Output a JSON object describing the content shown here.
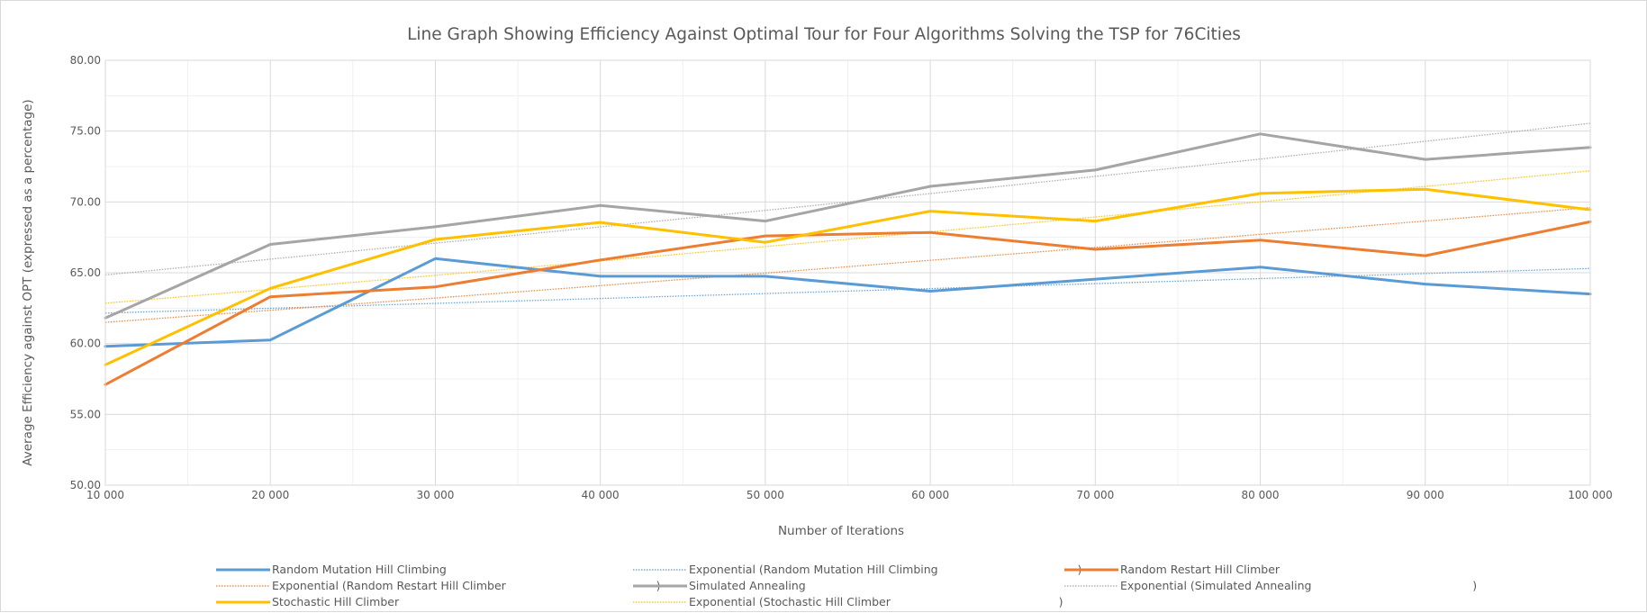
{
  "chart_data": {
    "type": "line",
    "title": "Line Graph Showing Efficiency Against Optimal Tour for Four Algorithms Solving the TSP for 76Cities",
    "xlabel": "Number of Iterations",
    "ylabel": "Average Efficiency against OPT (expressed as a percentage)",
    "x": [
      10000,
      20000,
      30000,
      40000,
      50000,
      60000,
      70000,
      80000,
      90000,
      100000
    ],
    "x_tick_labels": [
      "10 000",
      "20 000",
      "30 000",
      "40 000",
      "50 000",
      "60 000",
      "70 000",
      "80 000",
      "90 000",
      "100 000"
    ],
    "xlim": [
      10000,
      100000
    ],
    "ylim": [
      50,
      80
    ],
    "y_ticks": [
      50,
      55,
      60,
      65,
      70,
      75,
      80
    ],
    "y_tick_labels": [
      "50.00",
      "55.00",
      "60.00",
      "65.00",
      "70.00",
      "75.00",
      "80.00"
    ],
    "grid": true,
    "legend_position": "bottom",
    "series": [
      {
        "name": "Random Mutation Hill Climbing",
        "color": "#5b9bd5",
        "values": [
          59.8,
          60.25,
          66.0,
          64.75,
          64.75,
          63.7,
          64.55,
          65.4,
          64.2,
          63.5
        ]
      },
      {
        "name": "Random Restart Hill Climber",
        "color": "#ed7d31",
        "values": [
          57.1,
          63.3,
          64.0,
          65.9,
          67.6,
          67.85,
          66.65,
          67.3,
          66.2,
          68.6
        ]
      },
      {
        "name": "Simulated Annealing",
        "color": "#a5a5a5",
        "values": [
          61.8,
          67.0,
          68.25,
          69.75,
          68.65,
          71.1,
          72.25,
          74.8,
          73.0,
          73.85
        ]
      },
      {
        "name": "Stochastic Hill Climber",
        "color": "#ffc000",
        "values": [
          58.5,
          63.9,
          67.35,
          68.55,
          67.15,
          69.35,
          68.65,
          70.6,
          70.9,
          69.45
        ]
      }
    ],
    "trendlines": [
      {
        "name": "Exponential (Random Mutation Hill Climbing                                       )",
        "color": "#5b9bd5",
        "start": 62.15,
        "end": 65.3
      },
      {
        "name": "Exponential (Random Restart Hill Climber                                          )",
        "color": "#ed7d31",
        "start": 61.5,
        "end": 69.6
      },
      {
        "name": "Exponential (Simulated Annealing                                             )",
        "color": "#a5a5a5",
        "start": 64.85,
        "end": 75.55
      },
      {
        "name": "Exponential (Stochastic Hill Climber                                               )",
        "color": "#ffc000",
        "start": 62.85,
        "end": 72.2
      }
    ]
  }
}
